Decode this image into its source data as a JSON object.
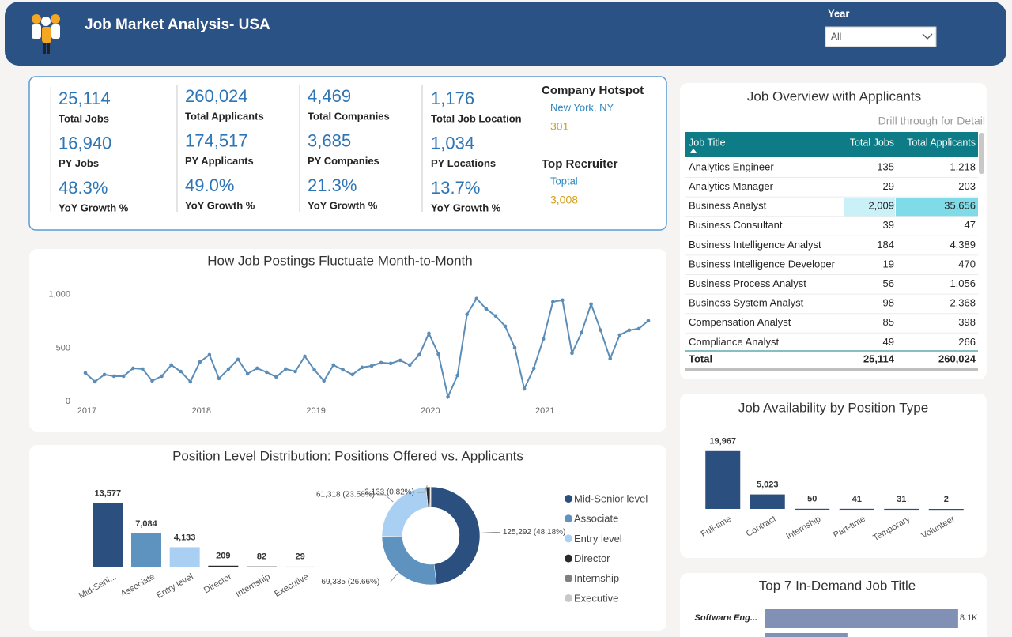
{
  "header": {
    "title": "Job Market Analysis- USA",
    "filter_label": "Year",
    "filter_value": "All"
  },
  "kpis": [
    {
      "items": [
        {
          "value": "25,114",
          "label": "Total Jobs"
        },
        {
          "value": "16,940",
          "label": "PY Jobs"
        },
        {
          "value": "48.3%",
          "label": "YoY Growth %"
        }
      ]
    },
    {
      "items": [
        {
          "value": "260,024",
          "label": "Total Applicants"
        },
        {
          "value": "174,517",
          "label": "PY Applicants"
        },
        {
          "value": "49.0%",
          "label": "YoY Growth %"
        }
      ]
    },
    {
      "items": [
        {
          "value": "4,469",
          "label": "Total Companies"
        },
        {
          "value": "3,685",
          "label": "PY Companies"
        },
        {
          "value": "21.3%",
          "label": "YoY Growth %"
        }
      ]
    },
    {
      "items": [
        {
          "value": "1,176",
          "label": "Total Job Location"
        },
        {
          "value": "1,034",
          "label": "PY Locations"
        },
        {
          "value": "13.7%",
          "label": "YoY Growth %"
        }
      ]
    }
  ],
  "highlights": [
    {
      "title": "Company Hotspot",
      "name": "New York, NY",
      "value": "301"
    },
    {
      "title": "Top Recruiter",
      "name": "Toptal",
      "value": "3,008"
    }
  ],
  "table": {
    "title": "Job Overview with Applicants",
    "note": "Drill through for Detail",
    "columns": [
      "Job Title",
      "Total Jobs",
      "Total Applicants"
    ],
    "rows": [
      [
        "Analytics Engineer",
        "135",
        "1,218"
      ],
      [
        "Analytics Manager",
        "29",
        "203"
      ],
      [
        "Business Analyst",
        "2,009",
        "35,656"
      ],
      [
        "Business Consultant",
        "39",
        "47"
      ],
      [
        "Business Intelligence Analyst",
        "184",
        "4,389"
      ],
      [
        "Business Intelligence Developer",
        "19",
        "470"
      ],
      [
        "Business Process Analyst",
        "56",
        "1,056"
      ],
      [
        "Business System Analyst",
        "98",
        "2,368"
      ],
      [
        "Compensation Analyst",
        "85",
        "398"
      ],
      [
        "Compliance Analyst",
        "49",
        "266"
      ]
    ],
    "total": [
      "Total",
      "25,114",
      "260,024"
    ]
  },
  "chart_data": [
    {
      "type": "line",
      "title": "How Job Postings Fluctuate Month-to-Month",
      "color": "#5b8db8",
      "categories": [
        "2017",
        null,
        null,
        null,
        null,
        null,
        null,
        null,
        null,
        null,
        null,
        null,
        "2018",
        null,
        null,
        null,
        null,
        null,
        null,
        null,
        null,
        null,
        null,
        null,
        "2019",
        null,
        null,
        null,
        null,
        null,
        null,
        null,
        null,
        null,
        null,
        null,
        "2020",
        null,
        null,
        null,
        null,
        null,
        null,
        null,
        null,
        null,
        null,
        null,
        "2021",
        null,
        null,
        null,
        null,
        null,
        null,
        null,
        null,
        null,
        null,
        null
      ],
      "values": [
        267,
        185,
        252,
        237,
        237,
        311,
        304,
        193,
        237,
        341,
        281,
        185,
        370,
        437,
        215,
        304,
        393,
        259,
        311,
        274,
        230,
        304,
        281,
        422,
        296,
        193,
        341,
        296,
        252,
        319,
        333,
        363,
        356,
        385,
        341,
        437,
        637,
        444,
        44,
        244,
        815,
        963,
        867,
        800,
        704,
        504,
        119,
        311,
        585,
        933,
        948,
        452,
        644,
        911,
        667,
        400,
        622,
        667,
        681,
        756
      ],
      "ylim": [
        0,
        1050
      ],
      "yticks": [
        0,
        500,
        {
          "value": 1000,
          "label": "1,000"
        }
      ]
    },
    {
      "type": "bar",
      "title": "Position Level Distribution: Positions Offered vs. Applicants",
      "categories": [
        "Mid-Seni...",
        "Associate",
        "Entry level",
        "Director",
        "Internship",
        "Executive"
      ],
      "values": [
        13577,
        7084,
        4133,
        209,
        82,
        29
      ],
      "value_labels": [
        "13,577",
        "7,084",
        "4,133",
        "209",
        "82",
        "29"
      ],
      "colors": [
        "#2b4f7e",
        "#5f93bf",
        "#a9d0f2",
        "#2a2a2a",
        "#808080",
        "#c8c8c8"
      ],
      "ylim": [
        0,
        16000
      ]
    },
    {
      "type": "pie",
      "categories": [
        "Mid-Senior level",
        "Associate",
        "Entry level",
        "Director",
        "Internship",
        "Executive"
      ],
      "values": [
        125292,
        69335,
        61318,
        2133,
        1500,
        450
      ],
      "value_labels": [
        "125,292 (48.18%)",
        "69,335 (26.66%)",
        "61,318 (23.58%)",
        "2,133 (0.82%)",
        null,
        null
      ],
      "colors": [
        "#2b4f7e",
        "#5f93bf",
        "#a9d0f2",
        "#2a2a2a",
        "#808080",
        "#c8c8c8"
      ]
    },
    {
      "type": "bar",
      "title": "Job Availability by Position Type",
      "color": "#2b4f7e",
      "categories": [
        "Full-time",
        "Contract",
        "Internship",
        "Part-time",
        "Temporary",
        "Volunteer"
      ],
      "values": [
        19967,
        5023,
        50,
        41,
        31,
        2
      ],
      "value_labels": [
        "19,967",
        "5,023",
        "50",
        "41",
        "31",
        "2"
      ],
      "ylim": [
        0,
        24000
      ]
    },
    {
      "type": "hbar",
      "title": "Top 7 In-Demand Job Title",
      "color": "#8091b5",
      "categories": [
        "Software Eng...",
        null
      ],
      "values": [
        8100,
        3450
      ],
      "value_labels": [
        "8.1K",
        null
      ],
      "xlim": [
        0,
        9000
      ]
    }
  ]
}
